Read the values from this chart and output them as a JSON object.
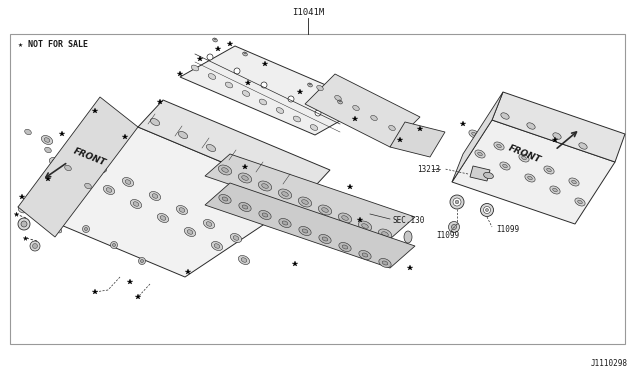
{
  "title_above": "I1041M",
  "watermark": "★ NOT FOR SALE",
  "part_number_br": "J1110298",
  "sec130": "SEC.130",
  "label_13213": "13213",
  "label_I1099": "I1099",
  "front_left": "FRONT",
  "front_right": "FRONT",
  "bg": "#ffffff",
  "border_c": "#999999",
  "lc": "#2a2a2a",
  "tc": "#1a1a1a",
  "gray1": "#c8c8c8",
  "gray2": "#aaaaaa",
  "gray3": "#888888",
  "gray4": "#d8d8d8",
  "gray5": "#e8e8e8"
}
